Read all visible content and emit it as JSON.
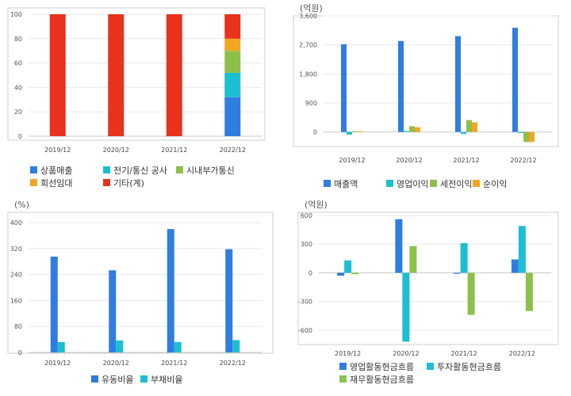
{
  "chart_data": [
    {
      "id": "sales_mix",
      "type": "bar",
      "stacked": true,
      "categories": [
        "2019/12",
        "2020/12",
        "2021/12",
        "2022/12"
      ],
      "ylim": [
        0,
        100
      ],
      "yticks": [
        0,
        20,
        40,
        60,
        80,
        100
      ],
      "unit": "",
      "grid": true,
      "legend_position": "bottom",
      "series": [
        {
          "name": "상품매출",
          "color": "#2f7de1",
          "values": [
            0,
            0,
            0,
            32
          ]
        },
        {
          "name": "전기/통신 공사",
          "color": "#1bbfd1",
          "values": [
            0,
            0,
            0,
            20
          ]
        },
        {
          "name": "시내부가통신",
          "color": "#8dc04a",
          "values": [
            0,
            0,
            0,
            18
          ]
        },
        {
          "name": "회선임대",
          "color": "#f4a623",
          "values": [
            0,
            0,
            0,
            10
          ]
        },
        {
          "name": "기타(계)",
          "color": "#e8321e",
          "values": [
            100,
            100,
            100,
            20
          ]
        }
      ]
    },
    {
      "id": "income",
      "type": "bar",
      "categories": [
        "2019/12",
        "2020/12",
        "2021/12",
        "2022/12"
      ],
      "unit": "(억원)",
      "ylim": [
        -450,
        3600
      ],
      "yticks": [
        0,
        900,
        1800,
        2700,
        3600
      ],
      "ytick_labels": [
        "0",
        "900",
        "1,800",
        "2,700",
        "3,600"
      ],
      "grid": true,
      "legend_position": "bottom",
      "series": [
        {
          "name": "매출액",
          "color": "#2f7de1",
          "values": [
            2720,
            2820,
            2970,
            3230
          ]
        },
        {
          "name": "영업이익",
          "color": "#1bbfd1",
          "values": [
            -80,
            30,
            -60,
            -30
          ]
        },
        {
          "name": "세전이익",
          "color": "#8dc04a",
          "values": [
            25,
            180,
            370,
            -310
          ]
        },
        {
          "name": "순이익",
          "color": "#f4a623",
          "values": [
            20,
            150,
            300,
            -310
          ]
        }
      ]
    },
    {
      "id": "ratios",
      "type": "bar",
      "categories": [
        "2019/12",
        "2020/12",
        "2021/12",
        "2022/12"
      ],
      "unit": "(%)",
      "ylim": [
        0,
        400
      ],
      "yticks": [
        0,
        80,
        160,
        240,
        320,
        400
      ],
      "grid": true,
      "legend_position": "bottom",
      "series": [
        {
          "name": "유동비율",
          "color": "#2f7de1",
          "values": [
            295,
            253,
            380,
            318
          ]
        },
        {
          "name": "부채비율",
          "color": "#1bbfd1",
          "values": [
            32,
            37,
            32,
            38
          ]
        }
      ]
    },
    {
      "id": "cashflow",
      "type": "bar",
      "categories": [
        "2019/12",
        "2020/12",
        "2021/12",
        "2022/12"
      ],
      "unit": "(억원)",
      "ylim": [
        -750,
        600
      ],
      "yticks": [
        -600,
        -300,
        0,
        300,
        600
      ],
      "grid": true,
      "legend_position": "bottom",
      "series": [
        {
          "name": "영업활동현금흐름",
          "color": "#2f7de1",
          "values": [
            -30,
            560,
            -10,
            140
          ]
        },
        {
          "name": "투자활동현금흐름",
          "color": "#1bbfd1",
          "values": [
            130,
            -720,
            310,
            490
          ]
        },
        {
          "name": "재무활동현금흐름",
          "color": "#8dc04a",
          "values": [
            -15,
            280,
            -440,
            -400
          ]
        }
      ]
    }
  ]
}
